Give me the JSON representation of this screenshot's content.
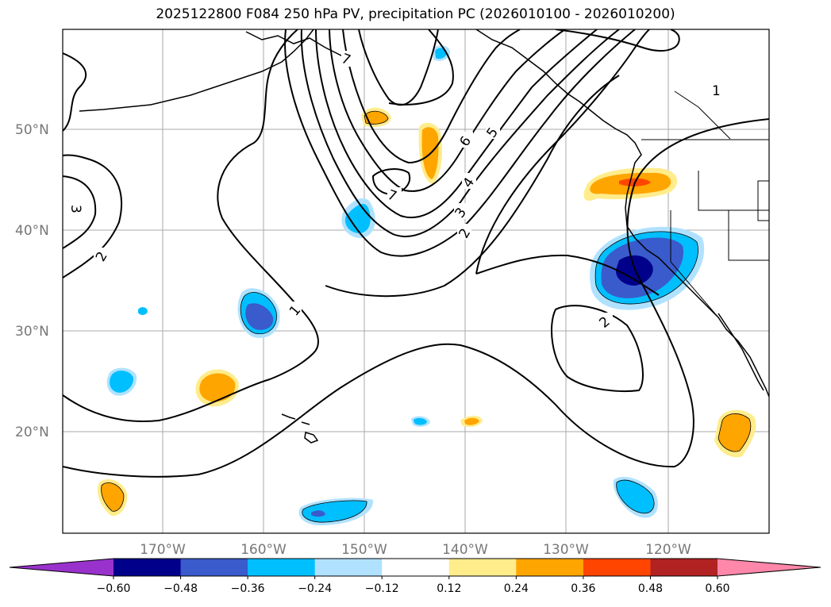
{
  "title": "2025122800 F084 250 hPa PV, precipitation PC (2026010100 - 2026010200)",
  "lat_labels": [
    "50°N",
    "40°N",
    "30°N",
    "20°N"
  ],
  "lon_labels": [
    "170°W",
    "160°W",
    "150°W",
    "140°W",
    "130°W",
    "120°W"
  ],
  "contour_labels": [
    "1",
    "1",
    "2",
    "2",
    "2",
    "3",
    "3",
    "4",
    "5",
    "6",
    "7",
    "7"
  ],
  "colorbar": {
    "colors": [
      "#9932cc",
      "#00008b",
      "#3a5bcb",
      "#00bfff",
      "#b0e2ff",
      "#ffffff",
      "#ffec8b",
      "#ffa500",
      "#ff4500",
      "#b22222",
      "#ff88aa"
    ],
    "tick_labels": [
      "−0.60",
      "−0.48",
      "−0.36",
      "−0.24",
      "−0.12",
      "0.12",
      "0.24",
      "0.36",
      "0.48",
      "0.60"
    ]
  }
}
